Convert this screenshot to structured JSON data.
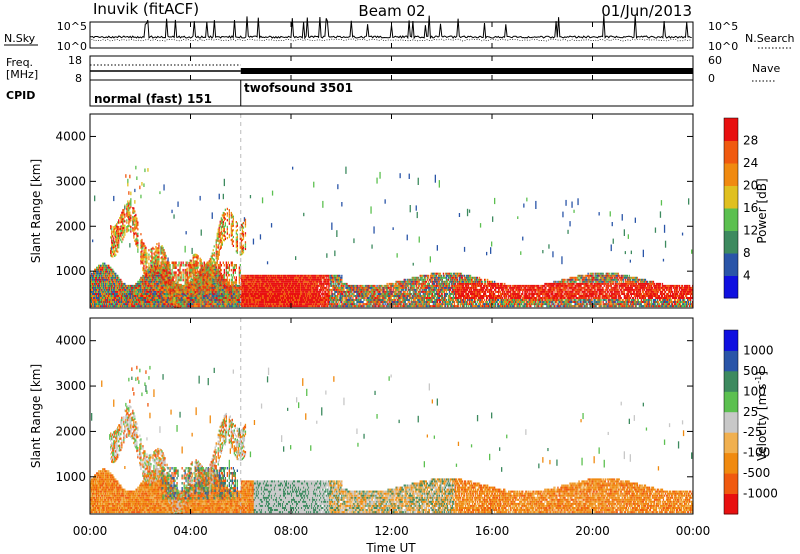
{
  "header": {
    "station": "Inuvik (fitACF)",
    "beam": "Beam 02",
    "date": "01/Jun/2013"
  },
  "noise_panel": {
    "left_label": "N.Sky",
    "right_label": "N.Search",
    "left_ticks": [
      "10^5",
      "10^0"
    ],
    "right_ticks": [
      "10^5",
      "10^0"
    ]
  },
  "freq_panel": {
    "label_line1": "Freq.",
    "label_line2": "[MHz]",
    "right_label": "Nave",
    "left_ticks": [
      "18",
      "8"
    ],
    "right_ticks": [
      "60",
      "0"
    ]
  },
  "cpid_panel": {
    "label": "CPID",
    "modes": [
      {
        "name": "normal (fast) 151",
        "start": "00:00",
        "end": "06:00"
      },
      {
        "name": "twofsound 3501",
        "start": "06:00",
        "end": "24:00"
      }
    ]
  },
  "colors": {
    "power": [
      "#1010e0",
      "#2a55a8",
      "#3d8a5f",
      "#5cc050",
      "#e0c020",
      "#f08a10",
      "#f05a10",
      "#e81010"
    ],
    "velocity": [
      "#e81010",
      "#f05a10",
      "#f08a10",
      "#f0b050",
      "#c8c8c8",
      "#5cc050",
      "#3d8a5f",
      "#2a55a8",
      "#1010e0"
    ]
  },
  "chart_data": [
    {
      "type": "heatmap",
      "ylabel": "Slant Range [km]",
      "y_ticks": [
        "1000",
        "2000",
        "3000",
        "4000"
      ],
      "ylim": [
        180,
        4500
      ],
      "x_ticks": [
        "00:00",
        "04:00",
        "08:00",
        "12:00",
        "16:00",
        "20:00",
        "00:00"
      ],
      "xlim_hours": [
        0,
        24
      ],
      "colorbar_label": "Power [dB]",
      "colorbar_ticks": [
        "4",
        "8",
        "12",
        "16",
        "20",
        "24",
        "28"
      ],
      "colorbar_range": [
        0,
        30
      ]
    },
    {
      "type": "heatmap",
      "ylabel": "Slant Range [km]",
      "y_ticks": [
        "1000",
        "2000",
        "3000",
        "4000"
      ],
      "ylim": [
        180,
        4500
      ],
      "x_ticks": [
        "00:00",
        "04:00",
        "08:00",
        "12:00",
        "16:00",
        "20:00",
        "00:00"
      ],
      "xlim_hours": [
        0,
        24
      ],
      "xlabel": "Time UT",
      "colorbar_label": "Velocity [m s",
      "colorbar_label_sup": "-1",
      "colorbar_label_end": "]",
      "colorbar_ticks": [
        "1000",
        "500",
        "100",
        "25",
        "-25",
        "-100",
        "-500",
        "-1000"
      ]
    }
  ]
}
